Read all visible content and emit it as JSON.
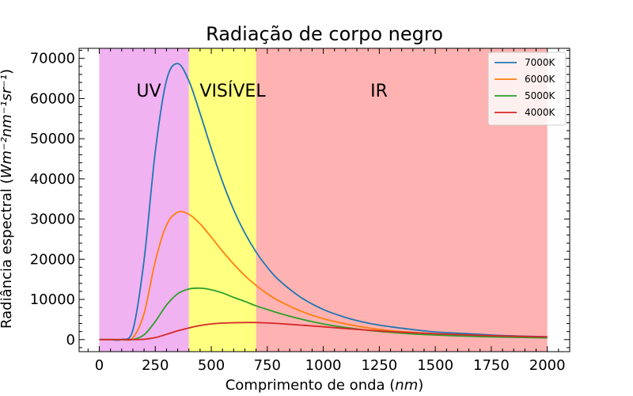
{
  "chart_data": {
    "type": "line",
    "title": "Radiação de corpo negro",
    "xlabel": "Comprimento de onda (nm)",
    "ylabel": "Radiância espectral (Wm⁻²nm⁻¹sr⁻¹)",
    "xlim": [
      -90,
      2100
    ],
    "ylim": [
      -3000,
      72500
    ],
    "x_ticks": [
      0,
      250,
      500,
      750,
      1000,
      1250,
      1500,
      1750,
      2000
    ],
    "y_ticks": [
      0,
      10000,
      20000,
      30000,
      40000,
      50000,
      60000,
      70000
    ],
    "legend_position": "top-right",
    "regions": [
      {
        "label": "UV",
        "x_start": 0,
        "x_end": 400,
        "color": "#f0b2f0",
        "label_color": "#0000ff"
      },
      {
        "label": "VISÍVEL",
        "x_start": 400,
        "x_end": 700,
        "color": "#ffff80",
        "label_color": "#008000"
      },
      {
        "label": "IR",
        "x_start": 700,
        "x_end": 2000,
        "color": "#ffb2b2",
        "label_color": "#ff0000"
      }
    ],
    "x": [
      0,
      50,
      100,
      150,
      200,
      250,
      300,
      350,
      400,
      450,
      500,
      550,
      600,
      650,
      700,
      750,
      800,
      900,
      1000,
      1100,
      1200,
      1300,
      1400,
      1500,
      1600,
      1700,
      1800,
      1900,
      2000
    ],
    "series": [
      {
        "name": "7000K",
        "color": "#1f77b4",
        "values": [
          0,
          0,
          12,
          2400,
          19800,
          46800,
          64500,
          68700,
          64400,
          56300,
          47500,
          39300,
          32300,
          26500,
          21800,
          18000,
          14900,
          10500,
          7500,
          5500,
          4100,
          3200,
          2500,
          1900,
          1600,
          1300,
          1000,
          850,
          700
        ]
      },
      {
        "name": "6000K",
        "color": "#ff7f0e",
        "values": [
          0,
          0,
          1,
          480,
          6500,
          19500,
          28500,
          31700,
          31200,
          28800,
          25500,
          22000,
          18800,
          15900,
          13500,
          11400,
          9700,
          7100,
          5200,
          3900,
          2900,
          2200,
          1800,
          1400,
          1100,
          900,
          750,
          620,
          520
        ]
      },
      {
        "name": "5000K",
        "color": "#2ca02c",
        "values": [
          0,
          0,
          0,
          40,
          1200,
          4500,
          8600,
          11400,
          12600,
          12800,
          12400,
          11600,
          10500,
          9500,
          8400,
          7500,
          6600,
          5100,
          3900,
          3000,
          2300,
          1800,
          1400,
          1150,
          920,
          750,
          620,
          520,
          430
        ]
      },
      {
        "name": "4000K",
        "color": "#d62728",
        "values": [
          0,
          0,
          0,
          1,
          80,
          500,
          1300,
          2200,
          2900,
          3500,
          3900,
          4100,
          4200,
          4250,
          4250,
          4150,
          4000,
          3600,
          3200,
          2750,
          2350,
          2000,
          1700,
          1450,
          1250,
          1050,
          900,
          780,
          680
        ]
      }
    ]
  }
}
